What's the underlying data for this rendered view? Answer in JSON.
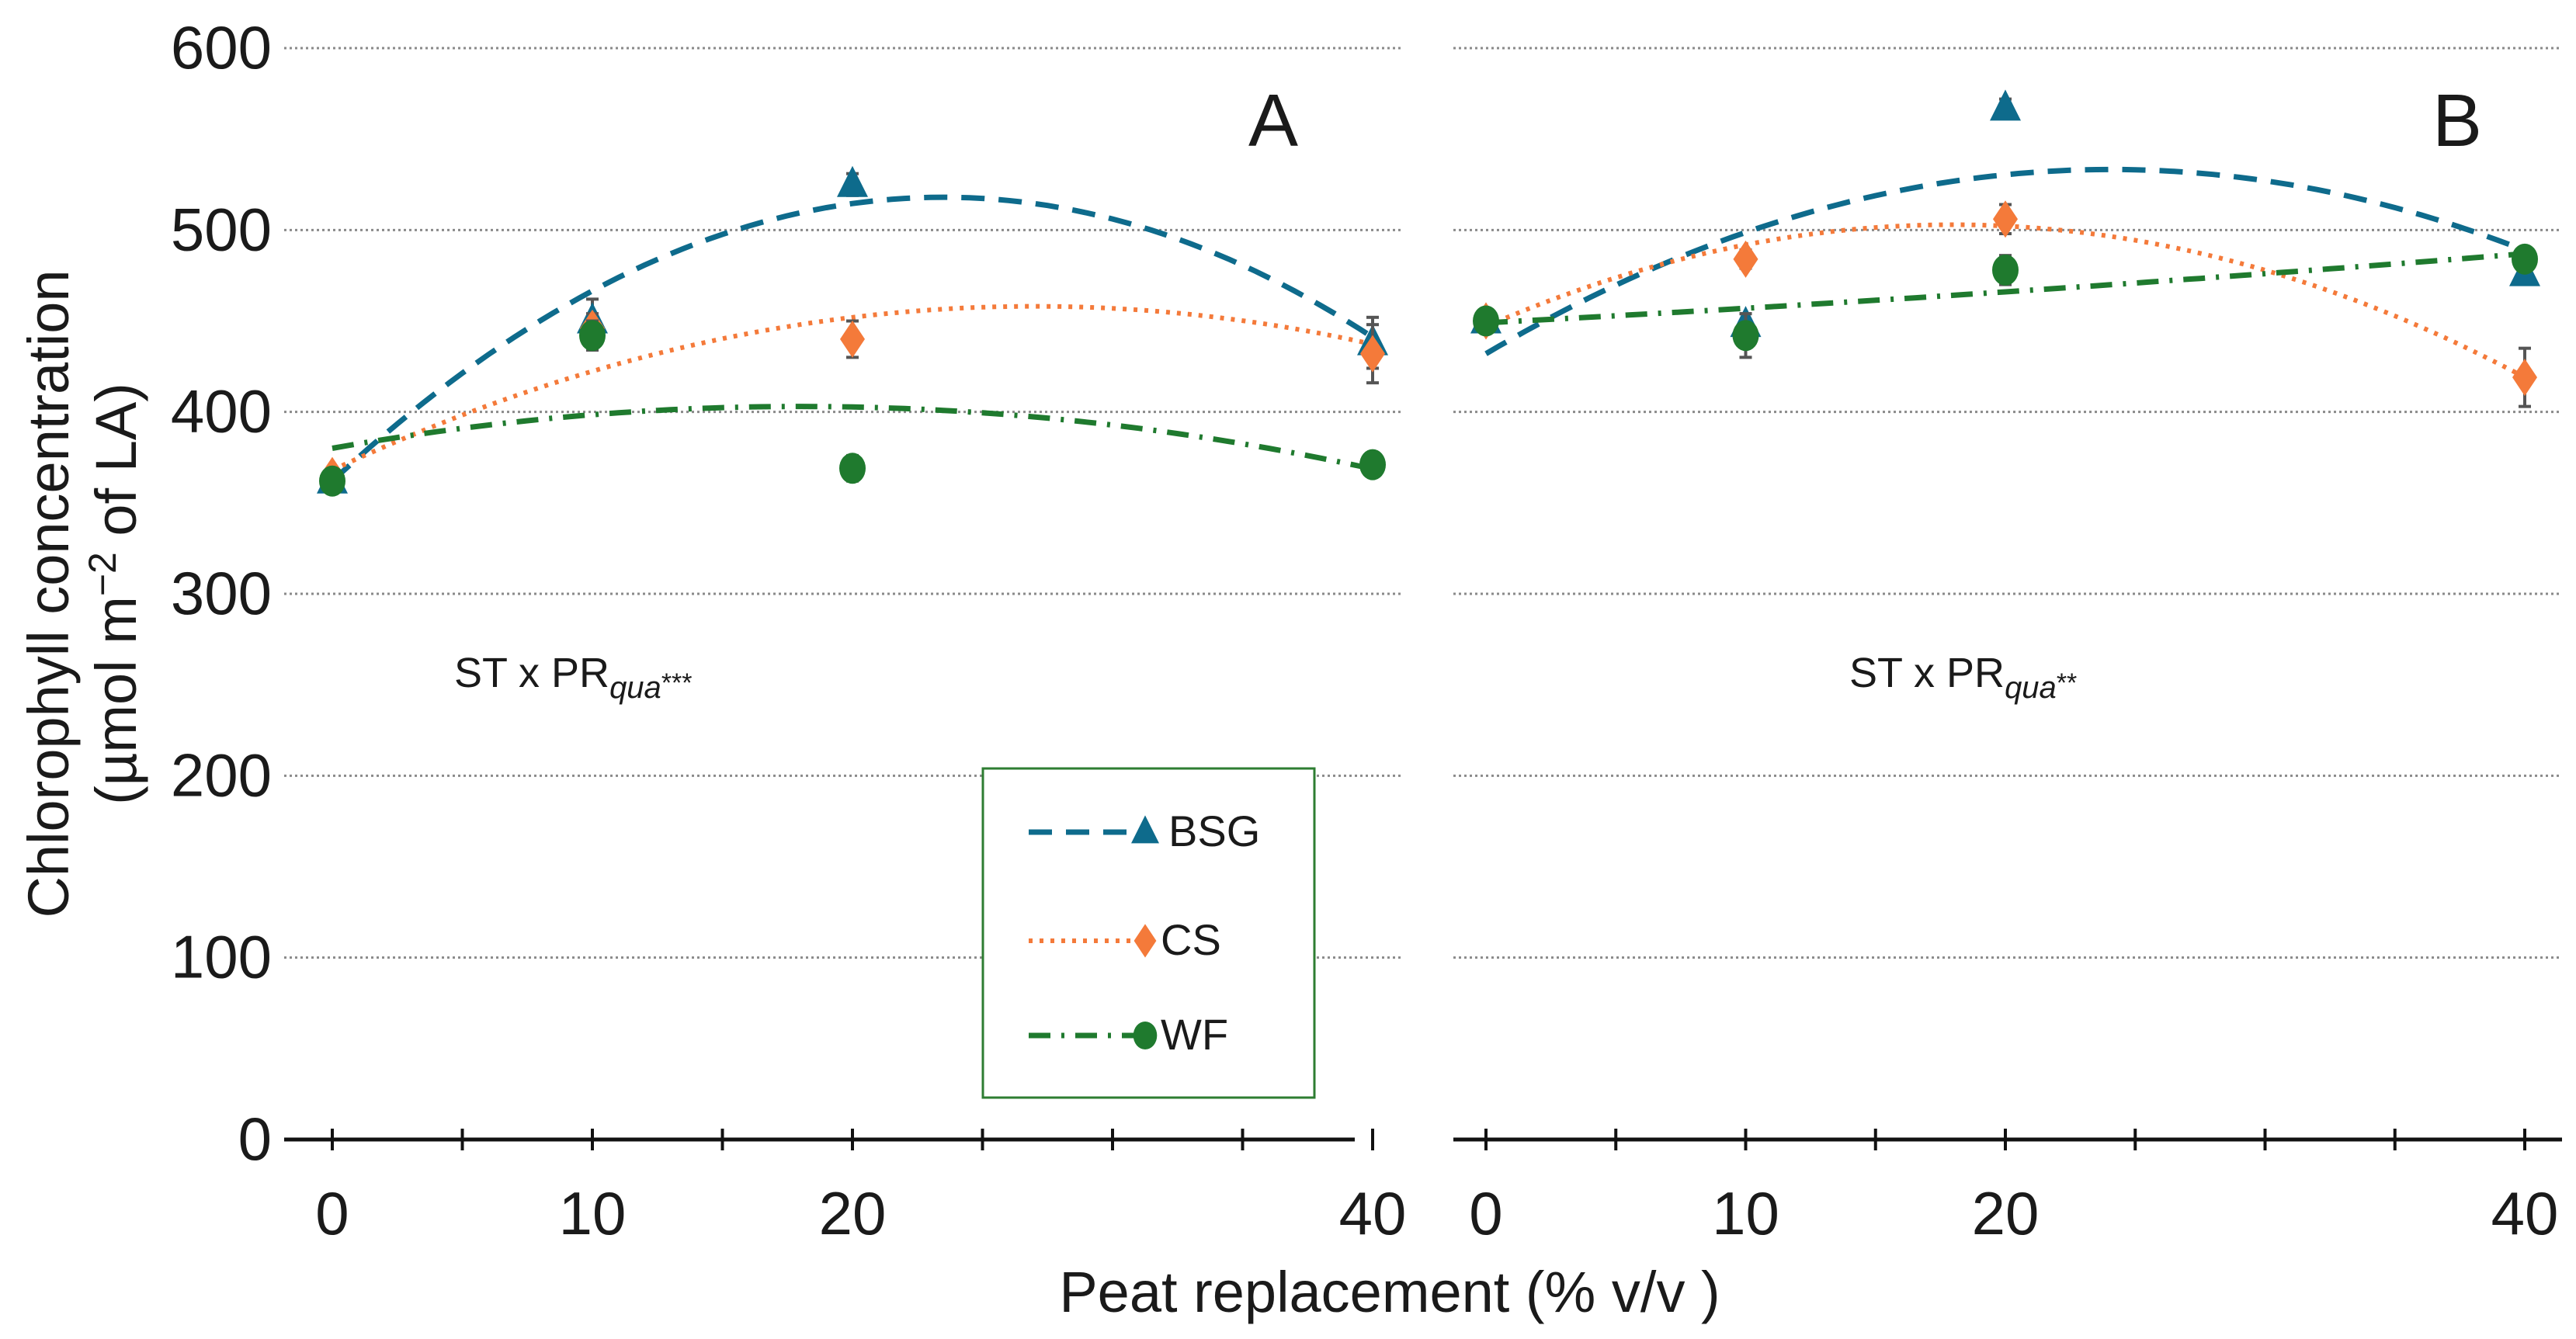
{
  "chart_data": {
    "type": "line",
    "ylabel_line1": "Chlorophyll concentration",
    "ylabel_line2_pre": "(µmol m",
    "ylabel_line2_sup": "−2",
    "ylabel_line2_post": " of LA)",
    "xlabel": "Peat replacement (% v/v )",
    "ylim": [
      0,
      600
    ],
    "yticks": [
      "0",
      "100",
      "200",
      "300",
      "400",
      "500",
      "600"
    ],
    "xlim": [
      0,
      40
    ],
    "xticks": [
      "0",
      "10",
      "20",
      "40"
    ],
    "xtick_values": [
      0,
      10,
      20,
      40
    ],
    "grid": "horizontal dotted",
    "legend": {
      "placement": "lower-right of panel A",
      "entries": [
        {
          "name": "BSG",
          "color": "#0e6b8c",
          "marker": "triangle",
          "line": "dashed"
        },
        {
          "name": "CS",
          "color": "#f47a3a",
          "marker": "diamond",
          "line": "dotted"
        },
        {
          "name": "WF",
          "color": "#1f7a2e",
          "marker": "circle",
          "line": "dash-dot"
        }
      ]
    },
    "panels": [
      {
        "label": "A",
        "annotation_main": "ST x PR",
        "annotation_sub": "qua",
        "annotation_sig": "***",
        "series": [
          {
            "name": "BSG",
            "x": [
              0,
              10,
              20,
              40
            ],
            "y": [
              362,
              450,
              525,
              438
            ],
            "err": [
              5,
              12,
              6,
              14
            ],
            "fit": [
              362,
              13.28,
              -0.2826
            ]
          },
          {
            "name": "CS",
            "x": [
              0,
              10,
              20,
              40
            ],
            "y": [
              365,
              446,
              440,
              432
            ],
            "err": [
              4,
              8,
              10,
              16
            ],
            "fit": [
              368,
              6.67,
              -0.1235
            ]
          },
          {
            "name": "WF",
            "x": [
              0,
              10,
              20,
              40
            ],
            "y": [
              362,
              442,
              369,
              371
            ],
            "err": [
              4,
              8,
              7,
              4
            ],
            "fit": [
              380,
              2.556,
              -0.071
            ]
          }
        ]
      },
      {
        "label": "B",
        "annotation_main": "ST x PR",
        "annotation_sub": "qua",
        "annotation_sig": "**",
        "series": [
          {
            "name": "BSG",
            "x": [
              0,
              10,
              20,
              40
            ],
            "y": [
              450,
              448,
              567,
              476
            ],
            "err": [
              4,
              6,
              5,
              5
            ],
            "fit": [
              432,
              8.42,
              -0.175
            ]
          },
          {
            "name": "CS",
            "x": [
              0,
              10,
              20,
              40
            ],
            "y": [
              450,
              484,
              506,
              419
            ],
            "err": [
              4,
              5,
              8,
              16
            ],
            "fit": [
              447,
              6.22,
              -0.173
            ]
          },
          {
            "name": "WF",
            "x": [
              0,
              10,
              20,
              40
            ],
            "y": [
              450,
              442,
              478,
              484
            ],
            "err": [
              4,
              12,
              8,
              5
            ],
            "fit": [
              449,
              0.75,
              0.005
            ]
          }
        ]
      }
    ]
  }
}
